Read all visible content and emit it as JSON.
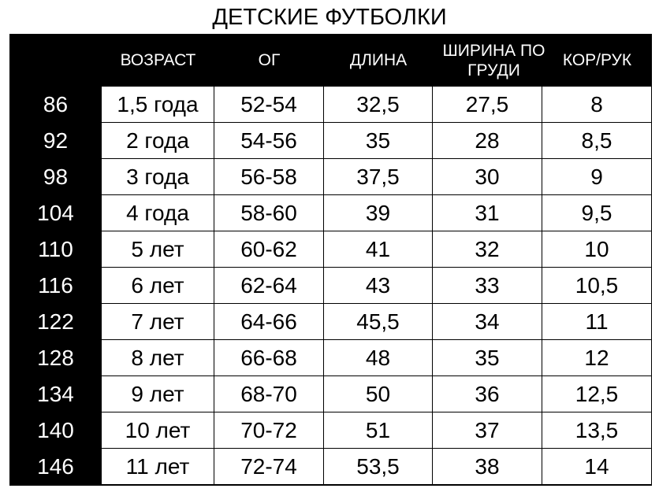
{
  "title": "ДЕТСКИЕ ФУТБОЛКИ",
  "columns": [
    "ВОЗРАСТ",
    "ОГ",
    "ДЛИНА",
    "ШИРИНА ПО ГРУДИ",
    "КОР/РУК"
  ],
  "rows": [
    {
      "size": "86",
      "cells": [
        "1,5 года",
        "52-54",
        "32,5",
        "27,5",
        "8"
      ]
    },
    {
      "size": "92",
      "cells": [
        "2 года",
        "54-56",
        "35",
        "28",
        "8,5"
      ]
    },
    {
      "size": "98",
      "cells": [
        "3 года",
        "56-58",
        "37,5",
        "30",
        "9"
      ]
    },
    {
      "size": "104",
      "cells": [
        "4 года",
        "58-60",
        "39",
        "31",
        "9,5"
      ]
    },
    {
      "size": "110",
      "cells": [
        "5 лет",
        "60-62",
        "41",
        "32",
        "10"
      ]
    },
    {
      "size": "116",
      "cells": [
        "6 лет",
        "62-64",
        "43",
        "33",
        "10,5"
      ]
    },
    {
      "size": "122",
      "cells": [
        "7 лет",
        "64-66",
        "45,5",
        "34",
        "11"
      ]
    },
    {
      "size": "128",
      "cells": [
        "8 лет",
        "66-68",
        "48",
        "35",
        "12"
      ]
    },
    {
      "size": "134",
      "cells": [
        "9 лет",
        "68-70",
        "50",
        "36",
        "12,5"
      ]
    },
    {
      "size": "140",
      "cells": [
        "10 лет",
        "70-72",
        "51",
        "37",
        "13,5"
      ]
    },
    {
      "size": "146",
      "cells": [
        "11 лет",
        "72-74",
        "53,5",
        "38",
        "14"
      ]
    }
  ]
}
